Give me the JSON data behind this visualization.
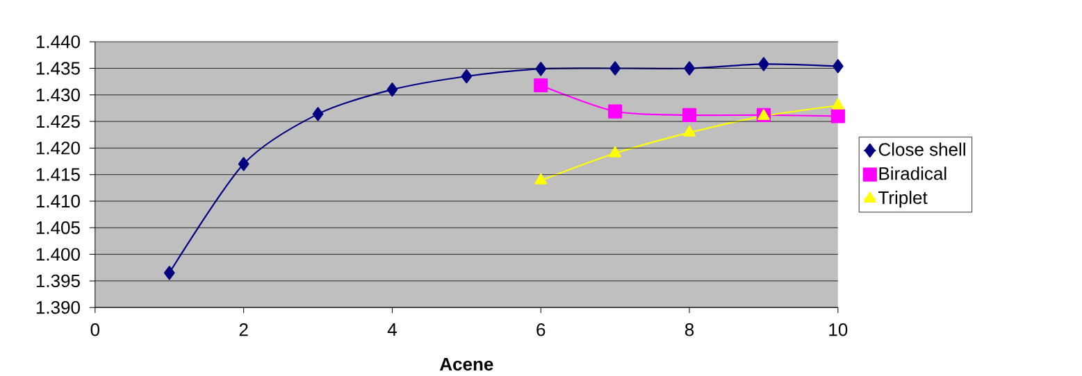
{
  "chart_data": {
    "type": "line",
    "xlabel": "Acene",
    "x": [
      1,
      2,
      3,
      4,
      5,
      6,
      7,
      8,
      9,
      10
    ],
    "series": [
      {
        "name": "Close shell",
        "color": "#000080",
        "marker": "diamond",
        "values": [
          1.3965,
          1.417,
          1.4264,
          1.431,
          1.4335,
          1.4349,
          1.435,
          1.435,
          1.4358,
          1.4354
        ]
      },
      {
        "name": "Biradical",
        "color": "#ff00ff",
        "marker": "square",
        "values": [
          null,
          null,
          null,
          null,
          null,
          1.4318,
          1.4269,
          1.4262,
          1.4262,
          1.426
        ]
      },
      {
        "name": "Triplet",
        "color": "#ffff00",
        "marker": "triangle",
        "values": [
          null,
          null,
          null,
          null,
          null,
          1.4139,
          1.419,
          1.4229,
          1.426,
          1.428
        ]
      }
    ],
    "xlim": [
      0,
      10
    ],
    "xticks": [
      0,
      2,
      4,
      6,
      8,
      10
    ],
    "ylim": [
      1.39,
      1.44
    ],
    "yticks": [
      {
        "value": 1.39,
        "label": "1.390"
      },
      {
        "value": 1.395,
        "label": "1.395"
      },
      {
        "value": 1.4,
        "label": "1.400"
      },
      {
        "value": 1.405,
        "label": "1.405"
      },
      {
        "value": 1.41,
        "label": "1.410"
      },
      {
        "value": 1.415,
        "label": "1.415"
      },
      {
        "value": 1.42,
        "label": "1.420"
      },
      {
        "value": 1.425,
        "label": "1.425"
      },
      {
        "value": 1.43,
        "label": "1.430"
      },
      {
        "value": 1.435,
        "label": "1.435"
      },
      {
        "value": 1.44,
        "label": "1.440"
      }
    ],
    "grid": "y",
    "legend": "right"
  }
}
